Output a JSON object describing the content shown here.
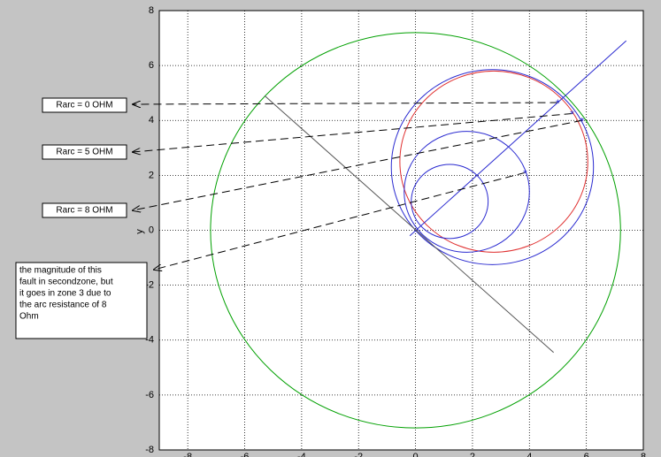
{
  "chart_data": {
    "type": "circle-diagram",
    "ylabel": "y",
    "xlim": [
      -9,
      8
    ],
    "ylim": [
      -8,
      8
    ],
    "xticks": [
      -8,
      -6,
      -4,
      -2,
      0,
      2,
      4,
      6,
      8
    ],
    "yticks": [
      -8,
      -6,
      -4,
      -2,
      0,
      2,
      4,
      6,
      8
    ],
    "grid": true,
    "circles": [
      {
        "color": "#00a000",
        "cx": 0,
        "cy": 0,
        "r": 7.2
      },
      {
        "color": "#2a2ad0",
        "cx": 2.7,
        "cy": 2.3,
        "r": 3.55
      },
      {
        "color": "#e03030",
        "cx": 2.75,
        "cy": 2.5,
        "r": 3.3
      },
      {
        "color": "#2a2ad0",
        "cx": 1.8,
        "cy": 1.4,
        "r": 2.2
      },
      {
        "color": "#2a2ad0",
        "cx": 1.2,
        "cy": 1.05,
        "r": 1.35
      }
    ],
    "lines": [
      {
        "color": "#2a2ad0",
        "x": [
          -0.2,
          7.4
        ],
        "y": [
          -0.2,
          6.9
        ]
      },
      {
        "color": "#555555",
        "x": [
          -5.3,
          4.85
        ],
        "y": [
          4.9,
          -4.45
        ]
      }
    ],
    "points": {
      "color": "#2a2ad0",
      "x": [
        5.0,
        5.5,
        5.85,
        3.85
      ],
      "y": [
        4.65,
        4.25,
        4.0,
        2.1
      ]
    },
    "annotations": [
      [
        "Rarc = 0 OHM"
      ],
      [
        "Rarc = 5 OHM"
      ],
      [
        "Rarc = 8 OHM"
      ],
      [
        "the magnitude of this",
        "fault in secondzone, but",
        "it goes in zone 3 due to",
        "the arc resistance of 8",
        "Ohm"
      ]
    ]
  }
}
